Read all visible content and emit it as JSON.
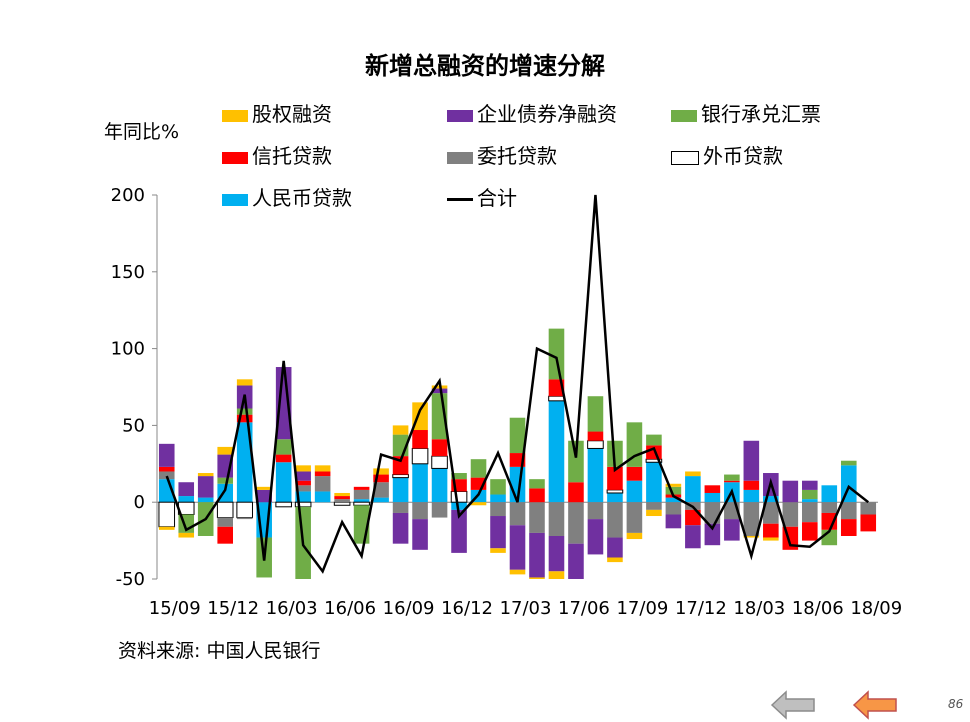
{
  "chart_data": {
    "type": "bar",
    "title": "新增总融资的增速分解",
    "ylabel": "年同比%",
    "ylim": [
      -50,
      200
    ],
    "yticks": [
      -50,
      0,
      50,
      100,
      150,
      200
    ],
    "xtick_labels": [
      "15/09",
      "15/12",
      "16/03",
      "16/06",
      "16/09",
      "16/12",
      "17/03",
      "17/06",
      "17/09",
      "17/12",
      "18/03",
      "18/06",
      "18/09"
    ],
    "stacked": true,
    "legend_position": "top",
    "categories": [
      "15/09",
      "15/10",
      "15/11",
      "15/12",
      "16/01",
      "16/02",
      "16/03",
      "16/04",
      "16/05",
      "16/06",
      "16/07",
      "16/08",
      "16/09",
      "16/10",
      "16/11",
      "16/12",
      "17/01",
      "17/02",
      "17/03",
      "17/04",
      "17/05",
      "17/06",
      "17/07",
      "17/08",
      "17/09",
      "17/10",
      "17/11",
      "17/12",
      "18/01",
      "18/02",
      "18/03",
      "18/04",
      "18/05",
      "18/06",
      "18/07",
      "18/08",
      "18/09"
    ],
    "series": [
      {
        "name": "人民币贷款",
        "color": "#00B0F0",
        "values": [
          15,
          4,
          3,
          12,
          52,
          -23,
          26,
          7,
          7,
          0,
          2,
          3,
          16,
          25,
          22,
          -5,
          8,
          5,
          23,
          0,
          66,
          0,
          35,
          6,
          14,
          26,
          3,
          17,
          6,
          13,
          8,
          4,
          0,
          2,
          11,
          24,
          0
        ]
      },
      {
        "name": "外币贷款",
        "color": "#FFFFFF",
        "values": [
          -16,
          -8,
          0,
          -10,
          -10,
          0,
          -3,
          -3,
          0,
          -2,
          -2,
          0,
          2,
          10,
          8,
          7,
          0,
          0,
          0,
          0,
          3,
          0,
          5,
          2,
          0,
          2,
          0,
          0,
          0,
          0,
          0,
          0,
          0,
          0,
          0,
          0,
          0
        ]
      },
      {
        "name": "委托贷款",
        "color": "#808080",
        "values": [
          5,
          0,
          0,
          -6,
          -1,
          0,
          0,
          4,
          10,
          2,
          6,
          10,
          -7,
          -11,
          -10,
          0,
          0,
          -9,
          -15,
          -20,
          -22,
          -27,
          -11,
          -23,
          -20,
          -5,
          -8,
          -5,
          -14,
          -11,
          -22,
          -14,
          -16,
          -13,
          -7,
          -11,
          -8
        ]
      },
      {
        "name": "信托贷款",
        "color": "#FF0000",
        "values": [
          3,
          0,
          0,
          -11,
          5,
          0,
          5,
          3,
          3,
          2,
          2,
          5,
          12,
          12,
          11,
          8,
          8,
          0,
          9,
          9,
          11,
          13,
          6,
          15,
          9,
          9,
          2,
          -10,
          5,
          1,
          6,
          -9,
          -15,
          -12,
          -11,
          -11,
          -11
        ]
      },
      {
        "name": "银行承兑汇票",
        "color": "#70AD47",
        "values": [
          0,
          -12,
          -22,
          4,
          4,
          -26,
          10,
          -57,
          0,
          0,
          -25,
          0,
          14,
          0,
          30,
          4,
          12,
          10,
          23,
          6,
          33,
          27,
          23,
          17,
          29,
          7,
          5,
          0,
          0,
          4,
          0,
          0,
          0,
          6,
          -10,
          3,
          0
        ]
      },
      {
        "name": "企业债券净融资",
        "color": "#7030A0",
        "values": [
          15,
          9,
          14,
          15,
          15,
          8,
          47,
          6,
          0,
          0,
          0,
          0,
          -20,
          -20,
          3,
          -28,
          0,
          -21,
          -29,
          -29,
          -23,
          -25,
          -23,
          -13,
          0,
          0,
          -9,
          -15,
          -14,
          -14,
          26,
          15,
          14,
          6,
          0,
          0,
          0
        ]
      },
      {
        "name": "股权融资",
        "color": "#FFC000",
        "values": [
          -2,
          -3,
          2,
          5,
          4,
          2,
          0,
          4,
          4,
          2,
          0,
          4,
          6,
          18,
          2,
          0,
          -2,
          -3,
          -3,
          -3,
          -5,
          -3,
          0,
          -3,
          -4,
          -4,
          2,
          3,
          0,
          0,
          -1,
          -2,
          0,
          0,
          0,
          0,
          0
        ]
      }
    ],
    "total": {
      "name": "合计",
      "color": "#000000",
      "values": [
        17,
        -18,
        -11,
        8,
        70,
        -38,
        92,
        -28,
        -45,
        -13,
        -35,
        31,
        27,
        60,
        79,
        -9,
        5,
        32,
        0,
        100,
        94,
        29,
        200,
        21,
        30,
        35,
        4,
        -3,
        -17,
        7,
        -35,
        13,
        -28,
        -29,
        -19,
        10,
        0
      ]
    }
  },
  "source_text": "资料来源:  中国人民银行",
  "page_number": "86",
  "nav": {
    "prev_label": "上一页",
    "next_label": "下一页"
  }
}
